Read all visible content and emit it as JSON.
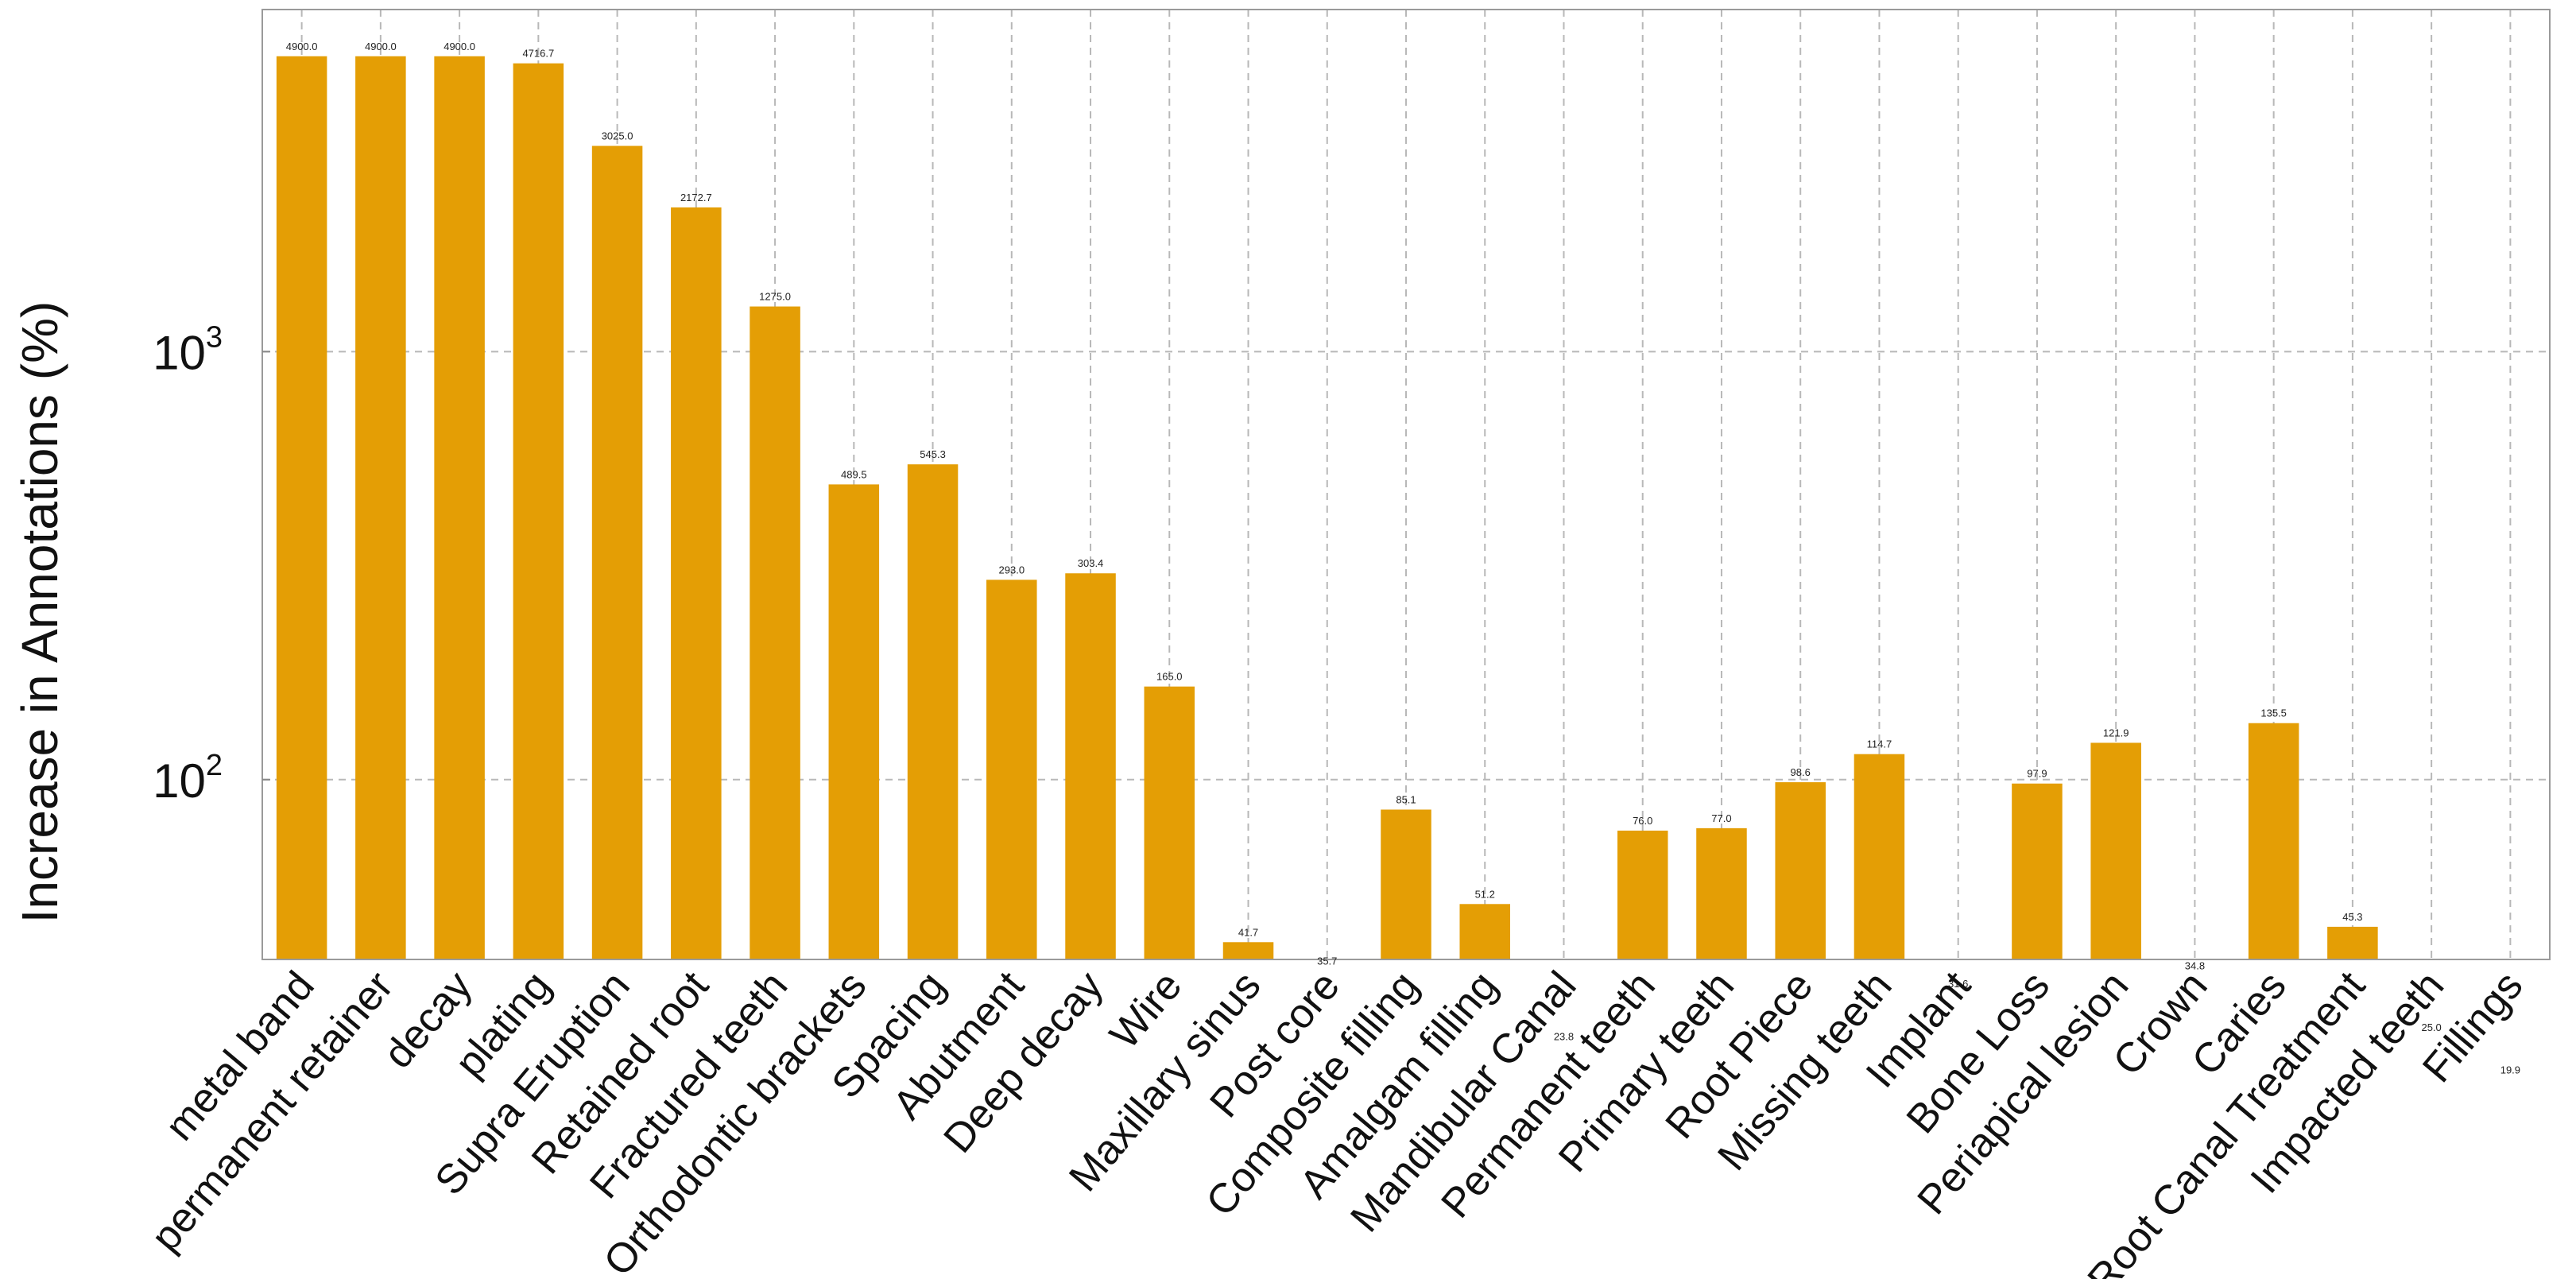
{
  "chart_data": {
    "type": "bar",
    "title": "",
    "xlabel": "",
    "ylabel": "Increase in Annotations (%)",
    "yscale": "log",
    "ylim": [
      38,
      6300
    ],
    "yticks": [
      100,
      1000
    ],
    "ytick_labels": [
      {
        "base": "10",
        "exp": "2"
      },
      {
        "base": "10",
        "exp": "3"
      }
    ],
    "grid": true,
    "bar_color": "#E49E05",
    "categories": [
      "metal band",
      "permanent retainer",
      "decay",
      "plating",
      "Supra Eruption",
      "Retained root",
      "Fractured teeth",
      "Orthodontic brackets",
      "Spacing",
      "Abutment",
      "Deep decay",
      "Wire",
      "Maxillary sinus",
      "Post core",
      "Composite filling",
      "Amalgam filling",
      "Mandibular Canal",
      "Permanent teeth",
      "Primary teeth",
      "Root Piece",
      "Missing teeth",
      "Implant",
      "Bone Loss",
      "Periapical lesion",
      "Crown",
      "Caries",
      "Root Canal Treatment",
      "Impacted teeth",
      "Fillings"
    ],
    "values": [
      4900.0,
      4900.0,
      4900.0,
      4716.7,
      3025.0,
      2172.7,
      1275.0,
      489.5,
      545.3,
      293.0,
      303.4,
      165.0,
      41.7,
      35.7,
      85.1,
      51.2,
      23.8,
      76.0,
      77.0,
      98.6,
      114.7,
      31.6,
      97.9,
      121.9,
      34.8,
      135.5,
      45.3,
      25.0,
      19.9
    ],
    "value_labels": [
      "4900.0",
      "4900.0",
      "4900.0",
      "4716.7",
      "3025.0",
      "2172.7",
      "1275.0",
      "489.5",
      "545.3",
      "293.0",
      "303.4",
      "165.0",
      "41.7",
      "35.7",
      "85.1",
      "51.2",
      "23.8",
      "76.0",
      "77.0",
      "98.6",
      "114.7",
      "31.6",
      "97.9",
      "121.9",
      "34.8",
      "135.5",
      "45.3",
      "25.0",
      "19.9"
    ]
  }
}
